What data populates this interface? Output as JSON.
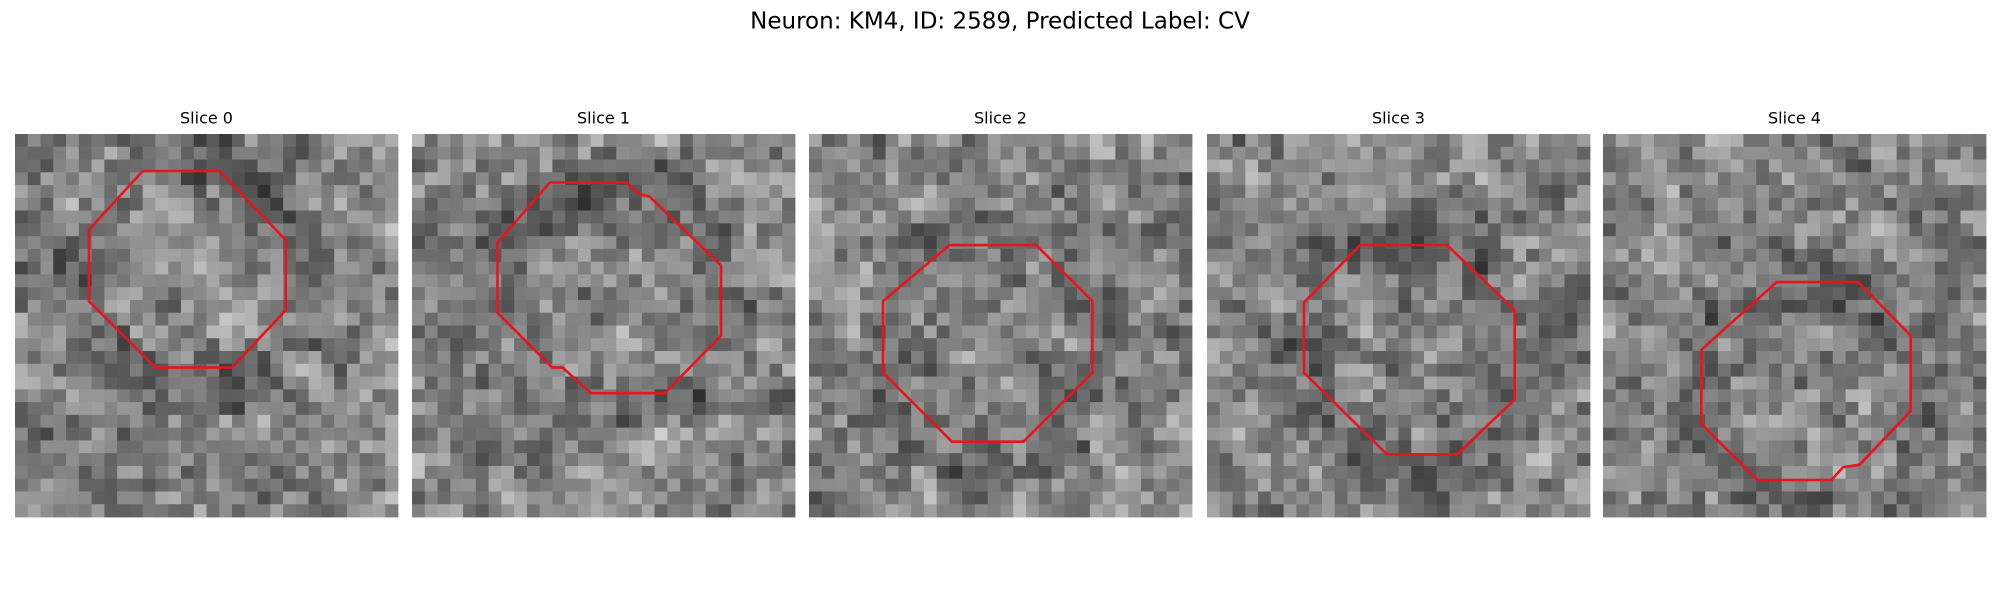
{
  "title": "Neuron: KM4, ID: 2589, Predicted Label: CV",
  "panels": [
    {
      "title": "Slice 0"
    },
    {
      "title": "Slice 1"
    },
    {
      "title": "Slice 2"
    },
    {
      "title": "Slice 3"
    },
    {
      "title": "Slice 4"
    }
  ]
}
